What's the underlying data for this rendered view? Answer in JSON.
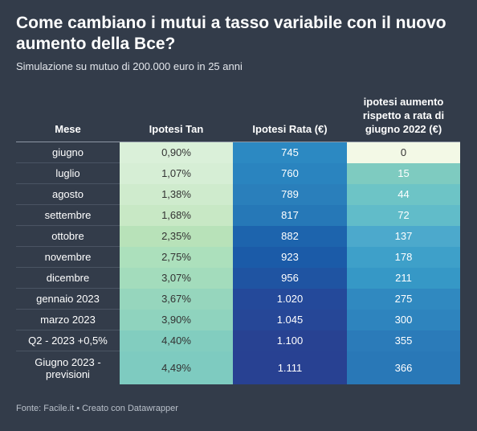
{
  "header": {
    "title": "Come cambiano i mutui a tasso variabile con il nuovo aumento della Bce?",
    "subtitle": "Simulazione su mutuo di 200.000 euro in 25 anni"
  },
  "chart_data": {
    "type": "table",
    "columns": [
      "Mese",
      "Ipotesi Tan",
      "Ipotesi Rata (€)",
      "ipotesi aumento rispetto a rata di giugno 2022 (€)"
    ],
    "rows": [
      {
        "mese": "giugno",
        "tan": "0,90%",
        "rata": "745",
        "aumento": "0"
      },
      {
        "mese": "luglio",
        "tan": "1,07%",
        "rata": "760",
        "aumento": "15"
      },
      {
        "mese": "agosto",
        "tan": "1,38%",
        "rata": "789",
        "aumento": "44"
      },
      {
        "mese": "settembre",
        "tan": "1,68%",
        "rata": "817",
        "aumento": "72"
      },
      {
        "mese": "ottobre",
        "tan": "2,35%",
        "rata": "882",
        "aumento": "137"
      },
      {
        "mese": "novembre",
        "tan": "2,75%",
        "rata": "923",
        "aumento": "178"
      },
      {
        "mese": "dicembre",
        "tan": "3,07%",
        "rata": "956",
        "aumento": "211"
      },
      {
        "mese": "gennaio 2023",
        "tan": "3,67%",
        "rata": "1.020",
        "aumento": "275"
      },
      {
        "mese": "marzo 2023",
        "tan": "3,90%",
        "rata": "1.045",
        "aumento": "300"
      },
      {
        "mese": "Q2 - 2023 +0,5%",
        "tan": "4,40%",
        "rata": "1.100",
        "aumento": "355"
      },
      {
        "mese": "Giugno 2023 - previsioni",
        "tan": "4,49%",
        "rata": "1.111",
        "aumento": "366"
      }
    ],
    "colors": {
      "tan": [
        "#daf0d9",
        "#d6eed5",
        "#cfebcd",
        "#c8e8c5",
        "#b8e2b9",
        "#ace0bc",
        "#a3dcbc",
        "#96d6bd",
        "#8fd3be",
        "#82cdbf",
        "#7ecbc0"
      ],
      "rata": [
        "#2c89c2",
        "#2a84bf",
        "#2a7fbb",
        "#2678b7",
        "#1d64ad",
        "#1b5ba8",
        "#1f54a2",
        "#24499a",
        "#264797",
        "#284292",
        "#284192"
      ],
      "aumento": [
        "#f3f9e6",
        "#7ecbc0",
        "#6dc4c6",
        "#61bcc9",
        "#4ca9cc",
        "#3ea0c9",
        "#3698c6",
        "#3089c0",
        "#2e84be",
        "#2b7bb9",
        "#2978b7"
      ]
    }
  },
  "footer": {
    "source": "Fonte: Facile.it • Creato con Datawrapper"
  }
}
